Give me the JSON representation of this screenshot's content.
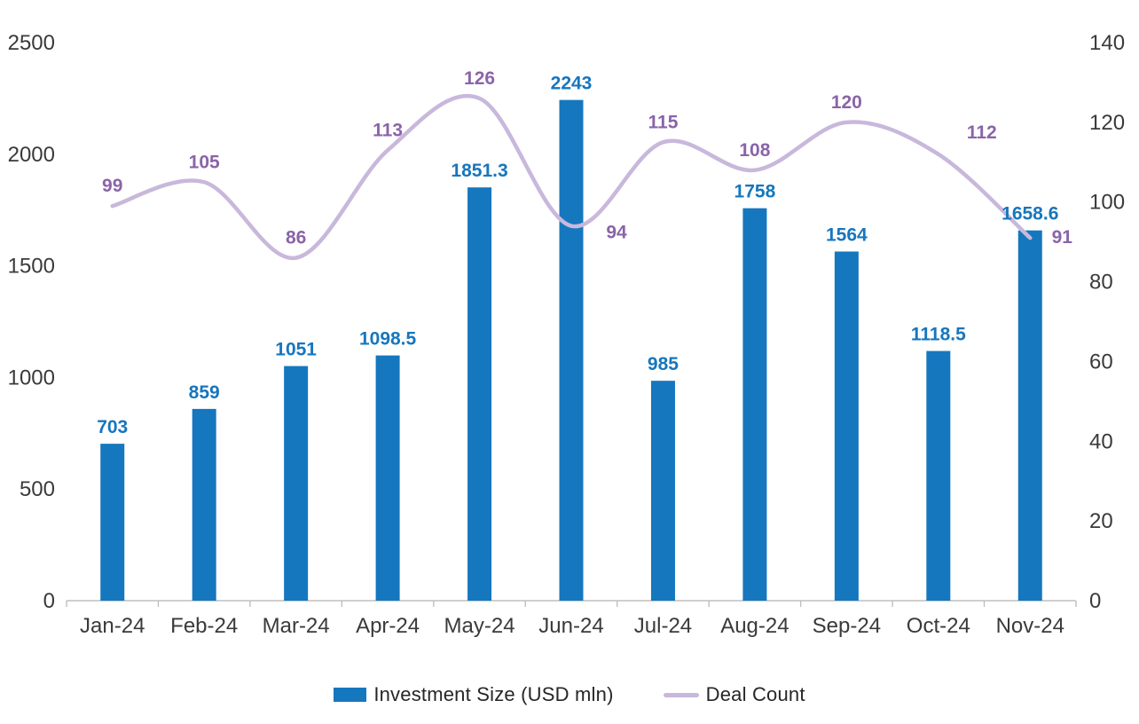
{
  "chart_data": {
    "type": "bar+line",
    "title": "",
    "categories": [
      "Jan-24",
      "Feb-24",
      "Mar-24",
      "Apr-24",
      "May-24",
      "Jun-24",
      "Jul-24",
      "Aug-24",
      "Sep-24",
      "Oct-24",
      "Nov-24"
    ],
    "series": [
      {
        "name": "Investment Size (USD mln)",
        "type": "bar",
        "axis": "left",
        "values": [
          703,
          859,
          1051,
          1098.5,
          1851.3,
          2243,
          985,
          1758,
          1564,
          1118.5,
          1658.6
        ]
      },
      {
        "name": "Deal Count",
        "type": "line",
        "axis": "right",
        "values": [
          99,
          105,
          86,
          113,
          126,
          94,
          115,
          108,
          120,
          112,
          91
        ]
      }
    ],
    "left_axis": {
      "min": 0,
      "max": 2500,
      "ticks": [
        0,
        500,
        1000,
        1500,
        2000,
        2500
      ]
    },
    "right_axis": {
      "min": 0,
      "max": 140,
      "ticks": [
        0,
        20,
        40,
        60,
        80,
        100,
        120,
        140
      ]
    },
    "grid": false,
    "data_labels": true,
    "legend_position": "bottom",
    "colors": {
      "bar": "#1577be",
      "bar_label": "#1776bd",
      "line": "#c8b8db",
      "line_label": "#8a64a9",
      "axis_text": "#3a3a3a",
      "axis_line": "#bfbfbf",
      "background": "#ffffff"
    }
  },
  "legend": {
    "items": [
      {
        "label": "Investment Size (USD mln)",
        "swatch": "bar"
      },
      {
        "label": "Deal Count",
        "swatch": "line"
      }
    ]
  }
}
